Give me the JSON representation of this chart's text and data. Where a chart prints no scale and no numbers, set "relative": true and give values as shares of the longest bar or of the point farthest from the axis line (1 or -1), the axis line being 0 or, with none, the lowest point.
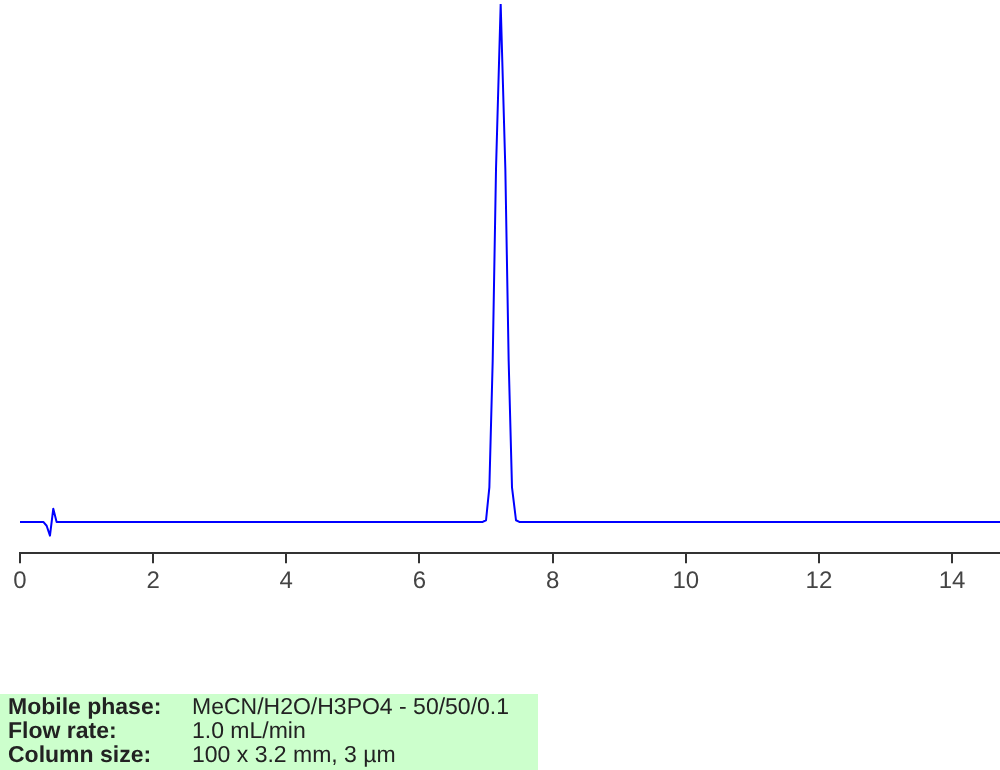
{
  "chart_data": {
    "type": "line",
    "relative": true,
    "x": [
      0,
      0.35,
      0.4,
      0.45,
      0.5,
      0.55,
      0.7,
      2,
      4,
      6,
      6.95,
      7.0,
      7.05,
      7.1,
      7.15,
      7.22,
      7.29,
      7.34,
      7.39,
      7.45,
      7.5,
      8,
      10,
      12,
      14,
      14.72
    ],
    "series": [
      {
        "color": "#0000ff",
        "values": [
          0.057,
          0.057,
          0.05,
          0.032,
          0.081,
          0.057,
          0.057,
          0.057,
          0.057,
          0.057,
          0.057,
          0.06,
          0.12,
          0.35,
          0.7,
          1,
          0.7,
          0.35,
          0.12,
          0.06,
          0.057,
          0.057,
          0.057,
          0.057,
          0.057,
          0.057
        ]
      }
    ],
    "xlim": [
      0,
      14.72
    ],
    "xticks": [
      0,
      2,
      4,
      6,
      8,
      10,
      12,
      14
    ],
    "grid": false,
    "legend": false,
    "marker": "none",
    "line_style": "solid",
    "tick_labels": "x",
    "annotations": [
      "Mobile phase:",
      "MeCN/H2O/H3PO4 - 50/50/0.1",
      "Flow rate:",
      "1.0 mL/min",
      "Column size:",
      "100 x 3.2 mm, 3 µm"
    ]
  }
}
